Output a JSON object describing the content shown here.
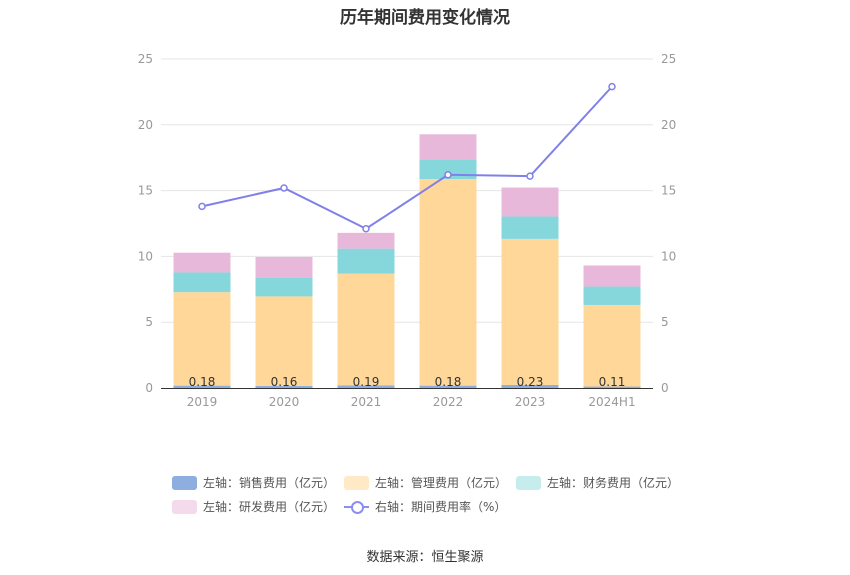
{
  "chart_data": {
    "type": "bar",
    "title": "历年期间费用变化情况",
    "categories": [
      "2019",
      "2020",
      "2021",
      "2022",
      "2023",
      "2024H1"
    ],
    "stacked": true,
    "series": [
      {
        "name": "左轴：销售费用（亿元）",
        "axis": "left",
        "color": "#8eaedf",
        "values": [
          0.18,
          0.16,
          0.19,
          0.18,
          0.23,
          0.11
        ],
        "labels": [
          "0.18",
          "0.16",
          "0.19",
          "0.18",
          "0.23",
          "0.11"
        ]
      },
      {
        "name": "左轴：管理费用（亿元）",
        "axis": "left",
        "color": "#ffd899",
        "values": [
          7.1,
          6.8,
          8.5,
          15.7,
          11.1,
          6.2
        ]
      },
      {
        "name": "左轴：财务费用（亿元）",
        "axis": "left",
        "color": "#86d7dc",
        "values": [
          1.5,
          1.4,
          1.9,
          1.5,
          1.7,
          1.4
        ]
      },
      {
        "name": "左轴：研发费用（亿元）",
        "axis": "left",
        "color": "#e8b8da",
        "values": [
          1.5,
          1.6,
          1.2,
          1.9,
          2.2,
          1.6
        ]
      }
    ],
    "line_series": {
      "name": "右轴：期间费用率（%）",
      "axis": "right",
      "color": "#8080ea",
      "values": [
        13.8,
        15.2,
        12.1,
        16.2,
        16.1,
        22.9
      ]
    },
    "ylim_left": [
      0,
      25
    ],
    "ylim_right": [
      0,
      25
    ],
    "yticks": [
      0,
      5,
      10,
      15,
      20,
      25
    ],
    "legend_position": "bottom"
  },
  "source": "数据来源：恒生聚源"
}
